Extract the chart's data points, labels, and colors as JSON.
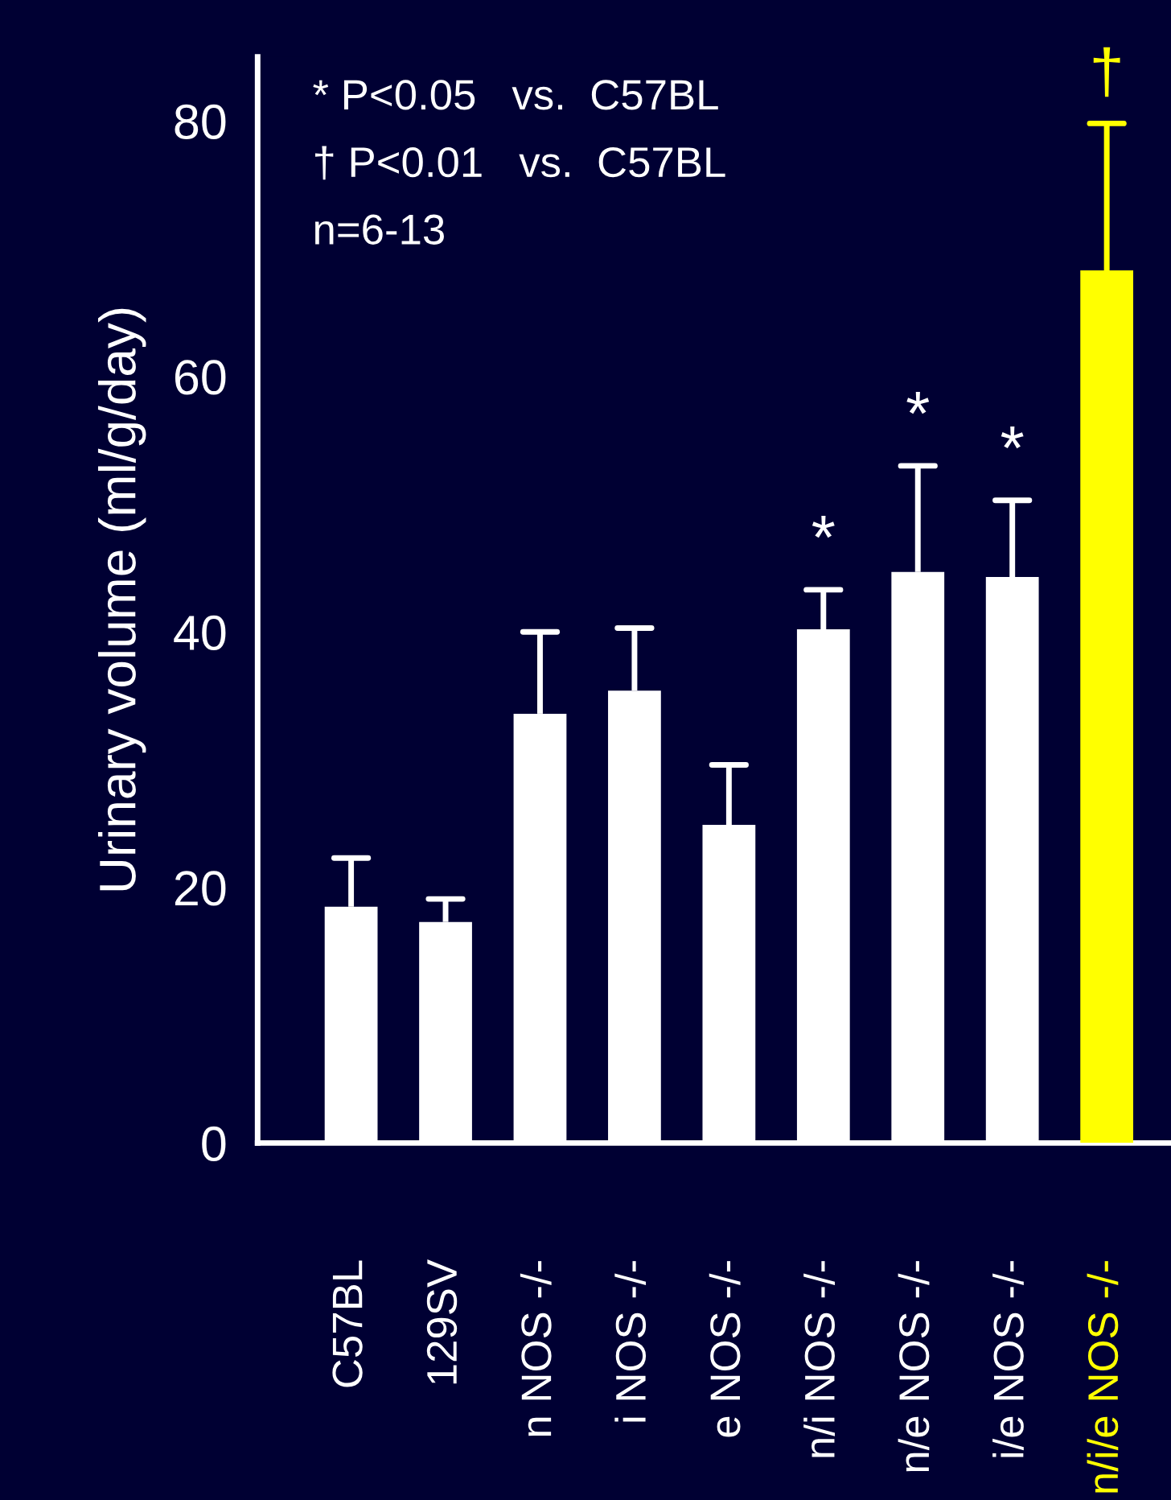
{
  "chart_data": {
    "type": "bar",
    "ylabel": "Urinary volume (ml/g/day)",
    "categories": [
      "C57BL",
      "129SV",
      "n NOS -/-",
      "i NOS -/-",
      "e NOS -/-",
      "n/i NOS -/-",
      "n/e NOS -/-",
      "i/e NOS -/-",
      "n/i/e NOS -/-"
    ],
    "values": [
      18.5,
      17.3,
      33.6,
      35.4,
      24.9,
      40.2,
      44.7,
      44.3,
      68.3
    ],
    "errors": [
      [
        18.5,
        22.3
      ],
      [
        17.3,
        19.1
      ],
      [
        33.6,
        40.0
      ],
      [
        35.4,
        40.3
      ],
      [
        24.9,
        29.6
      ],
      [
        40.2,
        43.3
      ],
      [
        44.7,
        53.0
      ],
      [
        44.3,
        50.3
      ],
      [
        68.3,
        79.8
      ]
    ],
    "colors": [
      "#ffffff",
      "#ffffff",
      "#ffffff",
      "#ffffff",
      "#ffffff",
      "#ffffff",
      "#ffffff",
      "#ffffff",
      "#ffff00"
    ],
    "ylim": [
      0,
      85
    ],
    "yticks": [
      0,
      20,
      40,
      60,
      80
    ],
    "grid": false,
    "legend": false,
    "annotations": [
      "* P<0.05   vs.  C57BL",
      "† P<0.01   vs.  C57BL",
      "n=6-13",
      {
        "text": "*",
        "x": "n/i NOS -/-",
        "y": 43.3
      },
      {
        "text": "*",
        "x": "n/e NOS -/-",
        "y": 53.0
      },
      {
        "text": "*",
        "x": "i/e NOS -/-",
        "y": 50.3
      },
      {
        "text": "†",
        "x": "n/i/e NOS -/-",
        "y": 79.8
      }
    ]
  }
}
